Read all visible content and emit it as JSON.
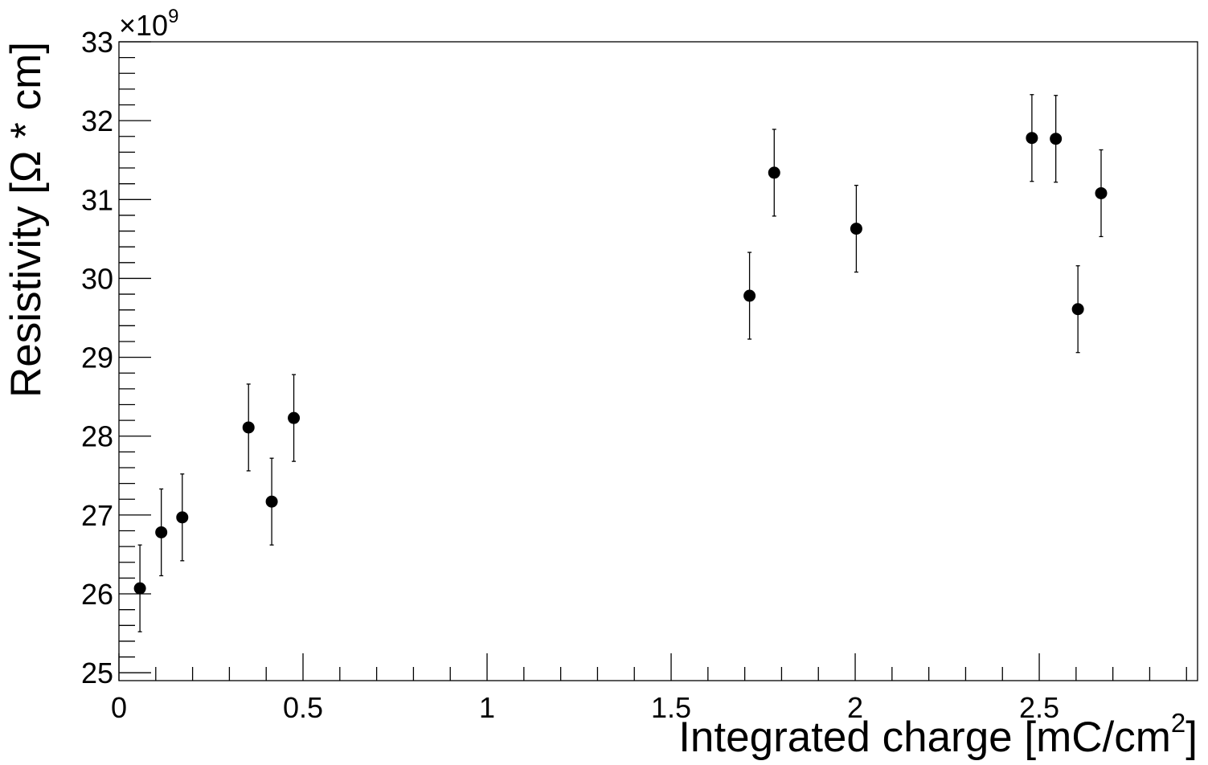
{
  "chart_data": {
    "type": "scatter",
    "xlabel": "Integrated charge [mC/cm",
    "xlabel_sup": "2",
    "xlabel_tail": "]",
    "ylabel": "Resistivity [Ω * cm]",
    "y_multiplier_text": "×10",
    "y_multiplier_exp": "9",
    "xlim": [
      0,
      2.93
    ],
    "ylim": [
      24.9,
      33
    ],
    "x_major_ticks": [
      {
        "value": 0,
        "label": "0"
      },
      {
        "value": 0.5,
        "label": "0.5"
      },
      {
        "value": 1,
        "label": "1"
      },
      {
        "value": 1.5,
        "label": "1.5"
      },
      {
        "value": 2,
        "label": "2"
      },
      {
        "value": 2.5,
        "label": "2.5"
      }
    ],
    "x_minor_step": 0.1,
    "y_major_ticks": [
      {
        "value": 25,
        "label": "25"
      },
      {
        "value": 26,
        "label": "26"
      },
      {
        "value": 27,
        "label": "27"
      },
      {
        "value": 28,
        "label": "28"
      },
      {
        "value": 29,
        "label": "29"
      },
      {
        "value": 30,
        "label": "30"
      },
      {
        "value": 31,
        "label": "31"
      },
      {
        "value": 32,
        "label": "32"
      },
      {
        "value": 33,
        "label": "33"
      }
    ],
    "y_minor_step": 0.2,
    "grid": false,
    "colors": {
      "marker": "#000000",
      "axis": "#000000",
      "background": "#ffffff"
    },
    "points": [
      {
        "x": 0.057,
        "y": 26.07,
        "err": 0.55
      },
      {
        "x": 0.115,
        "y": 26.78,
        "err": 0.55
      },
      {
        "x": 0.172,
        "y": 26.97,
        "err": 0.55
      },
      {
        "x": 0.352,
        "y": 28.11,
        "err": 0.55
      },
      {
        "x": 0.415,
        "y": 27.17,
        "err": 0.55
      },
      {
        "x": 0.475,
        "y": 28.23,
        "err": 0.55
      },
      {
        "x": 1.713,
        "y": 29.78,
        "err": 0.55
      },
      {
        "x": 1.78,
        "y": 31.34,
        "err": 0.55
      },
      {
        "x": 2.003,
        "y": 30.63,
        "err": 0.55
      },
      {
        "x": 2.48,
        "y": 31.78,
        "err": 0.55
      },
      {
        "x": 2.545,
        "y": 31.77,
        "err": 0.55
      },
      {
        "x": 2.605,
        "y": 29.61,
        "err": 0.55
      },
      {
        "x": 2.668,
        "y": 31.08,
        "err": 0.55
      }
    ]
  }
}
